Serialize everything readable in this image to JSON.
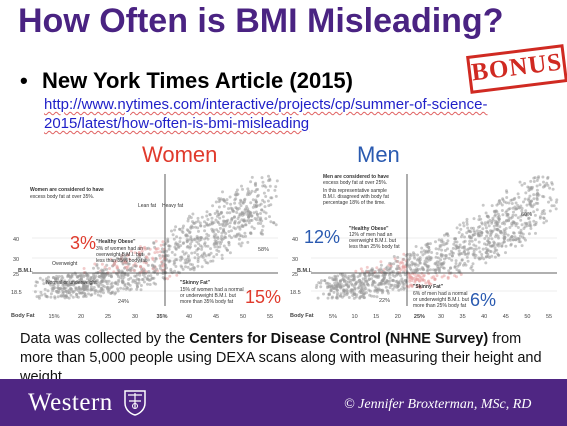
{
  "slide": {
    "title": "How Often is BMI Misleading?",
    "badge": "BONUS",
    "bullet": "New York Times Article (2015)",
    "link_line1": "http://www.nytimes.com/interactive/projects/cp/summer-of-science-",
    "link_line2": "2015/latest/how-often-is-bmi-misleading"
  },
  "women": {
    "heading": "Women",
    "note": "Women are considered to have excess body fat at over 35%.",
    "healthy_obese_pct": "3%",
    "healthy_obese_label": "\"Healthy Obese\"",
    "healthy_obese_text1": "3% of women had an",
    "healthy_obese_text2": "overweight B.M.I. but",
    "healthy_obese_text3": "less than 35% body fat",
    "skinny_fat_pct": "15%",
    "skinny_fat_label": "\"Skinny Fat\"",
    "skinny_fat_text1": "15% of women had a normal",
    "skinny_fat_text2": "or underweight B.M.I. but",
    "skinny_fat_text3": "more than 35% body fat",
    "upper_right_pct": "58%",
    "lower_left_pct": "24%",
    "threshold_label": "35%",
    "lean_fat": "Lean fat",
    "heavy_fat": "Heavy fat",
    "overweight": "Overweight",
    "normal_under": "Normal or underweight",
    "x_ticks": [
      "15%",
      "20",
      "25",
      "30",
      "35%",
      "40",
      "45",
      "50",
      "55"
    ]
  },
  "men": {
    "heading": "Men",
    "note1": "Men are considered to have excess body fat at over 25%.",
    "note2": "In this representative sample B.M.I. disagreed with body fat percentage 18% of the time.",
    "healthy_obese_pct": "12%",
    "healthy_obese_label": "\"Healthy Obese\"",
    "healthy_obese_text1": "12% of men had an",
    "healthy_obese_text2": "overweight B.M.I. but",
    "healthy_obese_text3": "less than 25% body fat",
    "skinny_fat_pct": "6%",
    "skinny_fat_label": "\"Skinny Fat\"",
    "skinny_fat_text1": "6% of men had a normal",
    "skinny_fat_text2": "or underweight B.M.I. but",
    "skinny_fat_text3": "more than 25% body fat",
    "upper_right_pct": "60%",
    "lower_left_pct": "22%",
    "threshold_label": "25%",
    "x_ticks": [
      "5%",
      "10",
      "15",
      "20",
      "25%",
      "30",
      "35",
      "40",
      "45",
      "50",
      "55"
    ]
  },
  "axes": {
    "y_label": "B.M.I.",
    "x_label": "Body Fat",
    "y_ticks": [
      "40",
      "30",
      "25",
      "18.5"
    ]
  },
  "footer": {
    "part1": "Data was collected by the ",
    "bold": "Centers for Disease Control (NHNE Survey)",
    "part2": " from more than 5,000 people using DEXA scans along with measuring their height and weight."
  },
  "branding": {
    "university": "Western",
    "credit": "© Jennifer Broxterman, MSc, RD"
  },
  "colors": {
    "purple": "#4f2683",
    "title": "#4a2382",
    "women_red": "#e03a2c",
    "men_blue": "#2a5ab0",
    "link_blue": "#1f1fc8"
  }
}
